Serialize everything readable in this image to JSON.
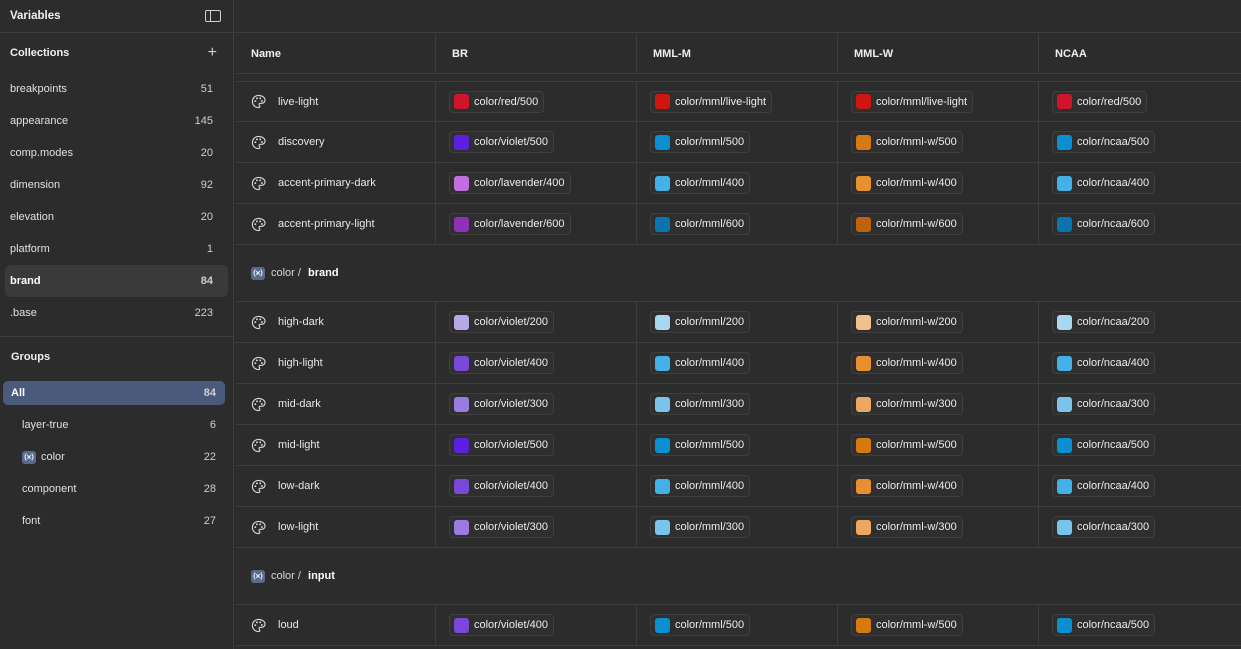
{
  "sidebar": {
    "title": "Variables",
    "collections_title": "Collections",
    "collections": [
      {
        "label": "breakpoints",
        "count": "51"
      },
      {
        "label": "appearance",
        "count": "145"
      },
      {
        "label": "comp.modes",
        "count": "20"
      },
      {
        "label": "dimension",
        "count": "92"
      },
      {
        "label": "elevation",
        "count": "20"
      },
      {
        "label": "platform",
        "count": "1"
      },
      {
        "label": "brand",
        "count": "84",
        "active": true
      },
      {
        "label": ".base",
        "count": "223"
      }
    ],
    "groups_title": "Groups",
    "groups": [
      {
        "label": "All",
        "count": "84",
        "active": true
      },
      {
        "label": "layer-true",
        "count": "6"
      },
      {
        "label": "color",
        "count": "22",
        "icon": "variable-group-icon"
      },
      {
        "label": "component",
        "count": "28"
      },
      {
        "label": "font",
        "count": "27"
      }
    ]
  },
  "table": {
    "columns": [
      "Name",
      "BR",
      "MML-M",
      "MML-W",
      "NCAA"
    ],
    "sections": [
      {
        "header": null,
        "rows": [
          {
            "name": "live-light",
            "values": [
              {
                "label": "color/red/500",
                "color": "#d0142a"
              },
              {
                "label": "color/mml/live-light",
                "color": "#d0140e"
              },
              {
                "label": "color/mml/live-light",
                "color": "#d0140e"
              },
              {
                "label": "color/red/500",
                "color": "#d0142a"
              }
            ]
          },
          {
            "name": "discovery",
            "values": [
              {
                "label": "color/violet/500",
                "color": "#5c1ee0"
              },
              {
                "label": "color/mml/500",
                "color": "#0a8fd0"
              },
              {
                "label": "color/mml-w/500",
                "color": "#d47a10"
              },
              {
                "label": "color/ncaa/500",
                "color": "#0a8fd0"
              }
            ]
          },
          {
            "name": "accent-primary-dark",
            "values": [
              {
                "label": "color/lavender/400",
                "color": "#c06ee0"
              },
              {
                "label": "color/mml/400",
                "color": "#44b0e8"
              },
              {
                "label": "color/mml-w/400",
                "color": "#e89030"
              },
              {
                "label": "color/ncaa/400",
                "color": "#44b0e8"
              }
            ]
          },
          {
            "name": "accent-primary-light",
            "values": [
              {
                "label": "color/lavender/600",
                "color": "#8e30b8"
              },
              {
                "label": "color/mml/600",
                "color": "#0a74b0"
              },
              {
                "label": "color/mml-w/600",
                "color": "#c06208"
              },
              {
                "label": "color/ncaa/600",
                "color": "#0a74b0"
              }
            ]
          }
        ]
      },
      {
        "header": {
          "prefix": "color / ",
          "bold": "brand"
        },
        "rows": [
          {
            "name": "high-dark",
            "values": [
              {
                "label": "color/violet/200",
                "color": "#b8a8e8"
              },
              {
                "label": "color/mml/200",
                "color": "#a8d8f0"
              },
              {
                "label": "color/mml-w/200",
                "color": "#f0c090"
              },
              {
                "label": "color/ncaa/200",
                "color": "#a8d8f0"
              }
            ]
          },
          {
            "name": "high-light",
            "values": [
              {
                "label": "color/violet/400",
                "color": "#7a48d8"
              },
              {
                "label": "color/mml/400",
                "color": "#44b0e8"
              },
              {
                "label": "color/mml-w/400",
                "color": "#e89030"
              },
              {
                "label": "color/ncaa/400",
                "color": "#44b0e8"
              }
            ]
          },
          {
            "name": "mid-dark",
            "values": [
              {
                "label": "color/violet/300",
                "color": "#9a7ce0"
              },
              {
                "label": "color/mml/300",
                "color": "#78c4ec"
              },
              {
                "label": "color/mml-w/300",
                "color": "#eca860"
              },
              {
                "label": "color/ncaa/300",
                "color": "#78c4ec"
              }
            ]
          },
          {
            "name": "mid-light",
            "values": [
              {
                "label": "color/violet/500",
                "color": "#5c1ee0"
              },
              {
                "label": "color/mml/500",
                "color": "#0a8fd0"
              },
              {
                "label": "color/mml-w/500",
                "color": "#d47a10"
              },
              {
                "label": "color/ncaa/500",
                "color": "#0a8fd0"
              }
            ]
          },
          {
            "name": "low-dark",
            "values": [
              {
                "label": "color/violet/400",
                "color": "#7a48d8"
              },
              {
                "label": "color/mml/400",
                "color": "#44b0e8"
              },
              {
                "label": "color/mml-w/400",
                "color": "#e89030"
              },
              {
                "label": "color/ncaa/400",
                "color": "#44b0e8"
              }
            ]
          },
          {
            "name": "low-light",
            "values": [
              {
                "label": "color/violet/300",
                "color": "#9a7ce0"
              },
              {
                "label": "color/mml/300",
                "color": "#78c4ec"
              },
              {
                "label": "color/mml-w/300",
                "color": "#eca860"
              },
              {
                "label": "color/ncaa/300",
                "color": "#78c4ec"
              }
            ]
          }
        ]
      },
      {
        "header": {
          "prefix": "color / ",
          "bold": "input"
        },
        "rows": [
          {
            "name": "loud",
            "values": [
              {
                "label": "color/violet/400",
                "color": "#7a48d8"
              },
              {
                "label": "color/mml/500",
                "color": "#0a8fd0"
              },
              {
                "label": "color/mml-w/500",
                "color": "#d47a10"
              },
              {
                "label": "color/ncaa/500",
                "color": "#0a8fd0"
              }
            ]
          }
        ]
      }
    ]
  }
}
